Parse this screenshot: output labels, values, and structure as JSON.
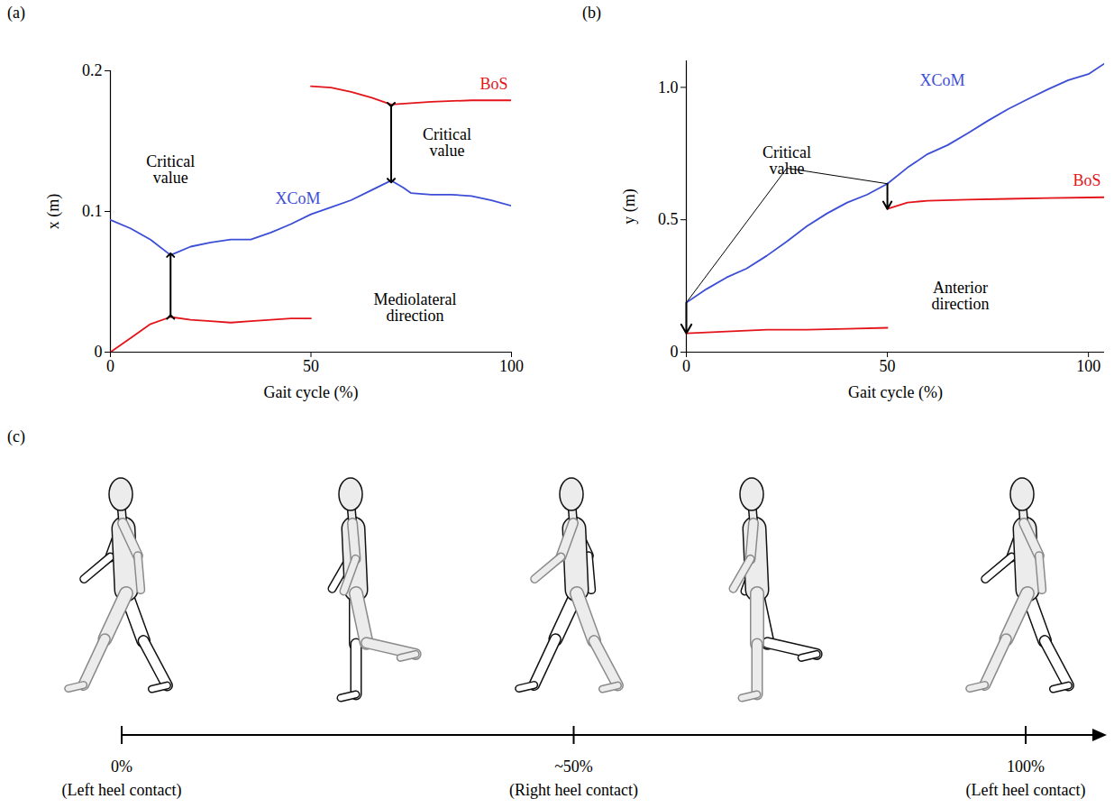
{
  "chart_data": [
    {
      "type": "line",
      "label": "(a)",
      "xlabel": "Gait cycle (%)",
      "ylabel": "x (m)",
      "xlim": [
        0,
        100
      ],
      "xticks": [
        0,
        50,
        100
      ],
      "ylim": [
        0,
        0.2
      ],
      "yticks": [
        0,
        0.1,
        0.2
      ],
      "series": [
        {
          "name": "XCoM",
          "color": "#3d4ed6",
          "x": [
            0,
            5,
            10,
            15,
            20,
            25,
            30,
            35,
            40,
            45,
            50,
            55,
            60,
            65,
            70,
            73,
            75,
            80,
            85,
            90,
            95,
            100
          ],
          "values": [
            0.094,
            0.088,
            0.08,
            0.069,
            0.075,
            0.078,
            0.08,
            0.08,
            0.085,
            0.091,
            0.098,
            0.103,
            0.108,
            0.115,
            0.122,
            0.117,
            0.113,
            0.112,
            0.112,
            0.111,
            0.108,
            0.104
          ]
        },
        {
          "name": "BoS",
          "color": "#e3151a",
          "x": [
            0,
            5,
            10,
            15,
            20,
            25,
            30,
            35,
            40,
            45,
            50,
            50,
            50,
            55,
            60,
            65,
            70,
            75,
            80,
            90,
            100
          ],
          "values": [
            0,
            0.01,
            0.02,
            0.025,
            0.023,
            0.022,
            0.021,
            0.022,
            0.023,
            0.024,
            0.024,
            null,
            0.189,
            0.188,
            0.185,
            0.181,
            0.176,
            0.177,
            0.178,
            0.179,
            0.179
          ]
        }
      ],
      "annotations": [
        {
          "text": "Critical value",
          "x": [
            15
          ]
        },
        {
          "text": "Critical value",
          "x": [
            70
          ]
        },
        {
          "text": "Mediolateral direction"
        }
      ]
    },
    {
      "type": "line",
      "label": "(b)",
      "xlabel": "Gait cycle (%)",
      "ylabel": "y (m)",
      "xlim": [
        0,
        104
      ],
      "xticks": [
        0,
        50,
        100
      ],
      "ylim": [
        0,
        1.1
      ],
      "yticks": [
        0,
        0.5,
        {
          "value": 1,
          "label": "1.0"
        }
      ],
      "series": [
        {
          "name": "XCoM",
          "color": "#3d4ed6",
          "x": [
            0,
            5,
            10,
            15,
            20,
            25,
            30,
            35,
            40,
            45,
            50,
            55,
            60,
            65,
            70,
            75,
            80,
            85,
            90,
            95,
            100,
            104
          ],
          "values": [
            0.187,
            0.238,
            0.282,
            0.316,
            0.364,
            0.418,
            0.476,
            0.524,
            0.565,
            0.595,
            0.636,
            0.697,
            0.748,
            0.782,
            0.827,
            0.874,
            0.918,
            0.956,
            0.993,
            1.027,
            1.05,
            1.09
          ]
        },
        {
          "name": "BoS",
          "color": "#e3151a",
          "x": [
            0,
            10,
            20,
            30,
            40,
            50,
            50,
            50,
            55,
            60,
            70,
            80,
            90,
            100,
            104
          ],
          "values": [
            0.071,
            0.078,
            0.085,
            0.085,
            0.088,
            0.092,
            null,
            0.541,
            0.565,
            0.572,
            0.576,
            0.579,
            0.582,
            0.584,
            0.585
          ]
        }
      ],
      "annotations": [
        {
          "text": "Critical value",
          "x": [
            0,
            50
          ]
        },
        {
          "text": "Anterior direction"
        }
      ]
    }
  ],
  "diagram": {
    "label": "(c)",
    "timeline": [
      {
        "at": 0,
        "label": "0%",
        "caption": "(Left heel contact)"
      },
      {
        "at": 50,
        "label": "~50%",
        "caption": "(Right heel contact)"
      },
      {
        "at": 100,
        "label": "100%",
        "caption": "(Left heel contact)"
      }
    ]
  }
}
